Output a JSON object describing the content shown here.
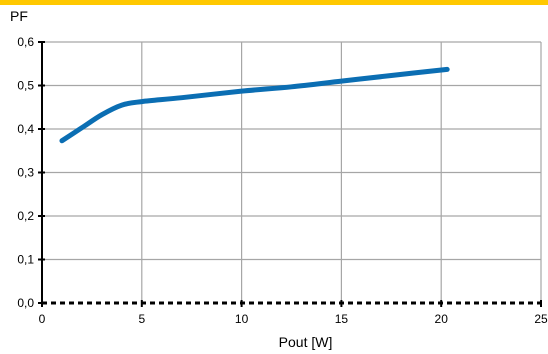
{
  "chart_data": {
    "type": "line",
    "title": "",
    "xlabel": "Pout [W]",
    "ylabel": "PF",
    "xlim": [
      0,
      25
    ],
    "ylim": [
      0,
      0.6
    ],
    "x_ticks": [
      "0",
      "5",
      "10",
      "15",
      "20",
      "25"
    ],
    "y_ticks": [
      "0,0",
      "0,1",
      "0,2",
      "0,3",
      "0,4",
      "0,5",
      "0,6"
    ],
    "grid": true,
    "legend": "none",
    "series": [
      {
        "color": "#0b6eb3",
        "x": [
          1,
          2,
          3,
          4,
          5,
          7,
          10,
          12.5,
          15,
          17.5,
          20.3
        ],
        "y": [
          0.373,
          0.403,
          0.433,
          0.455,
          0.463,
          0.472,
          0.487,
          0.497,
          0.51,
          0.523,
          0.537
        ]
      }
    ]
  },
  "colors": {
    "accent_bar": "#ffc800",
    "series": "#0b6eb3",
    "grid": "#a6a6a6",
    "axis": "#000000"
  }
}
